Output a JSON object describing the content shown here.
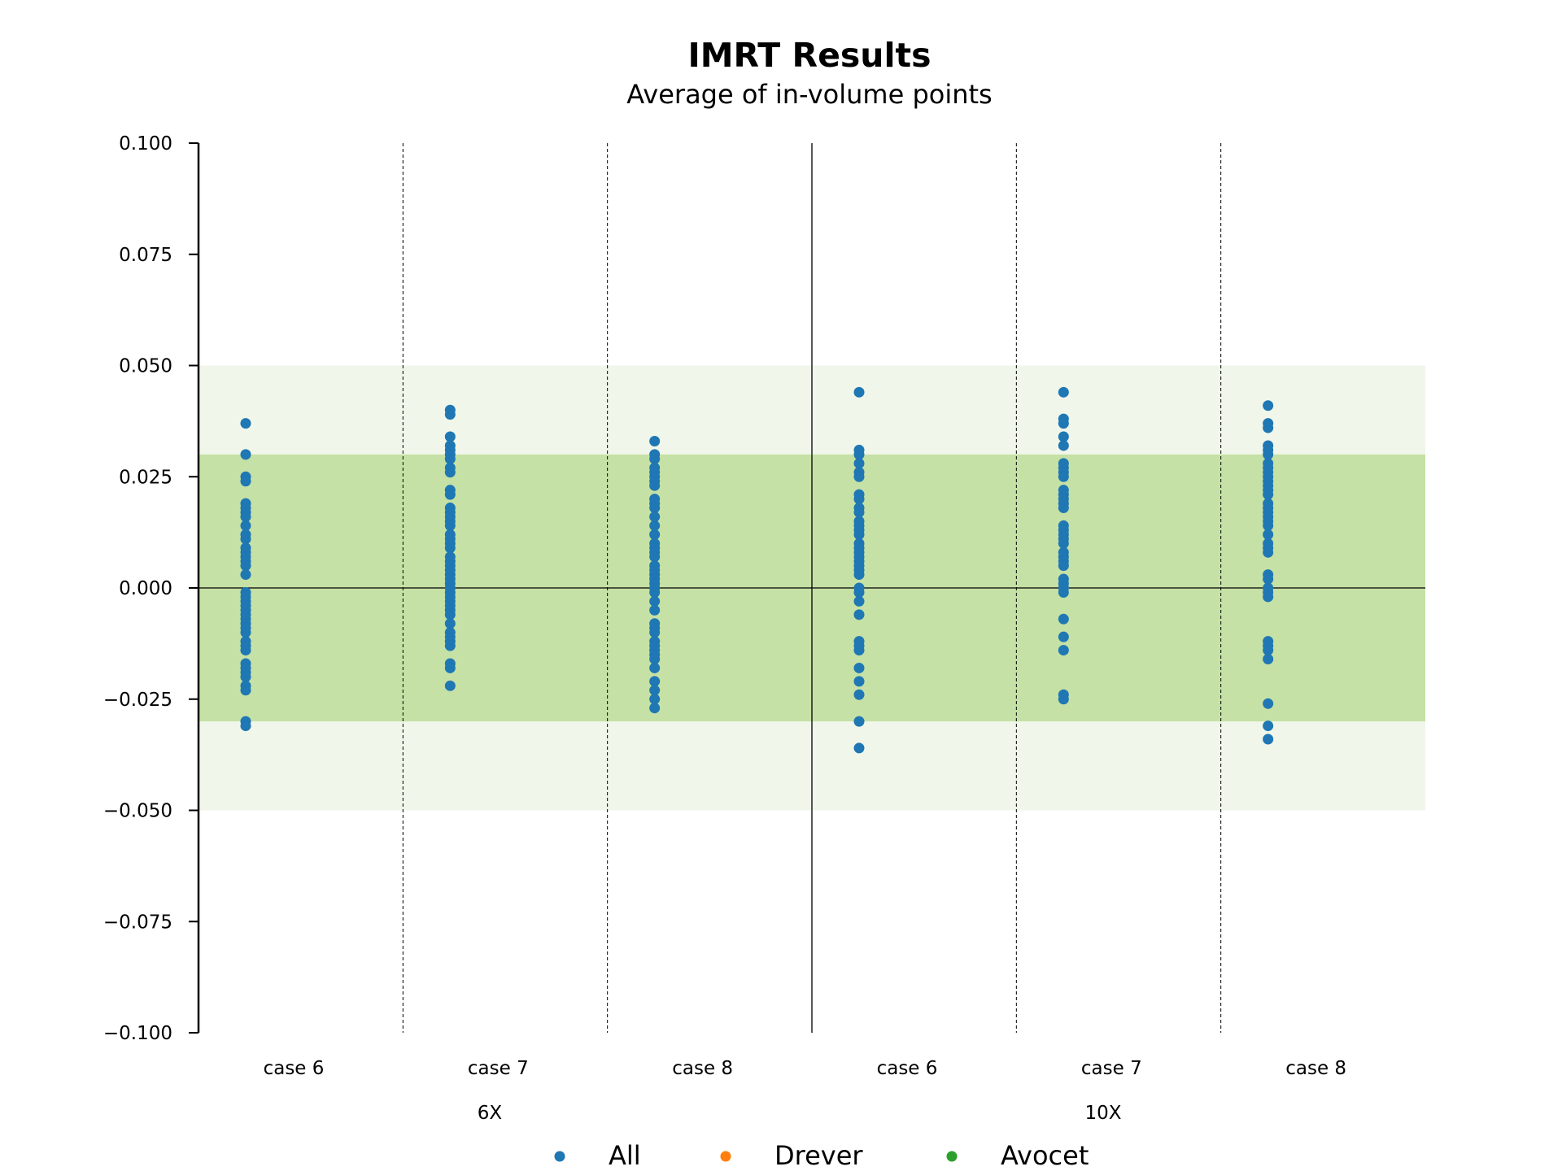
{
  "chart_data": {
    "type": "scatter",
    "title": "IMRT Results",
    "subtitle": "Average of in-volume points",
    "ylim": [
      -0.1,
      0.1
    ],
    "yticks": [
      0.1,
      0.075,
      0.05,
      0.025,
      0.0,
      -0.025,
      -0.05,
      -0.075,
      -0.1
    ],
    "ytick_labels": [
      "0.100",
      "0.075",
      "0.050",
      "0.025",
      "0.000",
      "−0.025",
      "−0.050",
      "−0.075",
      "−0.100"
    ],
    "bands": [
      {
        "from": -0.05,
        "to": 0.05,
        "color": "#f0f6e9"
      },
      {
        "from": -0.03,
        "to": 0.03,
        "color": "#c5e1a5"
      }
    ],
    "categories": [
      "case 6",
      "case 7",
      "case 8",
      "case 6",
      "case 7",
      "case 8"
    ],
    "groups": [
      {
        "label": "6X",
        "categories": [
          0,
          1,
          2
        ]
      },
      {
        "label": "10X",
        "categories": [
          3,
          4,
          5
        ]
      }
    ],
    "series": [
      {
        "name": "All",
        "color": "#1f77b4",
        "values": [
          [
            0.037,
            0.03,
            0.025,
            0.024,
            0.019,
            0.018,
            0.017,
            0.016,
            0.014,
            0.012,
            0.011,
            0.009,
            0.008,
            0.007,
            0.006,
            0.005,
            0.003,
            -0.001,
            -0.002,
            -0.003,
            -0.004,
            -0.005,
            -0.006,
            -0.007,
            -0.008,
            -0.009,
            -0.01,
            -0.012,
            -0.013,
            -0.014,
            -0.017,
            -0.018,
            -0.019,
            -0.02,
            -0.022,
            -0.023,
            -0.03,
            -0.031
          ],
          [
            0.04,
            0.039,
            0.034,
            0.032,
            0.031,
            0.03,
            0.029,
            0.027,
            0.026,
            0.022,
            0.021,
            0.018,
            0.017,
            0.016,
            0.015,
            0.014,
            0.012,
            0.011,
            0.01,
            0.009,
            0.007,
            0.006,
            0.005,
            0.004,
            0.003,
            0.002,
            0.001,
            0.0,
            -0.001,
            -0.002,
            -0.003,
            -0.004,
            -0.005,
            -0.006,
            -0.008,
            -0.01,
            -0.011,
            -0.012,
            -0.013,
            -0.017,
            -0.018,
            -0.022
          ],
          [
            0.033,
            0.03,
            0.029,
            0.027,
            0.026,
            0.025,
            0.024,
            0.023,
            0.02,
            0.019,
            0.018,
            0.016,
            0.014,
            0.012,
            0.01,
            0.009,
            0.008,
            0.007,
            0.005,
            0.004,
            0.003,
            0.002,
            0.001,
            0.0,
            -0.001,
            -0.003,
            -0.005,
            -0.008,
            -0.009,
            -0.01,
            -0.012,
            -0.013,
            -0.014,
            -0.015,
            -0.016,
            -0.018,
            -0.021,
            -0.023,
            -0.025,
            -0.027
          ],
          [
            0.044,
            0.031,
            0.03,
            0.028,
            0.026,
            0.025,
            0.021,
            0.02,
            0.018,
            0.017,
            0.015,
            0.014,
            0.013,
            0.012,
            0.01,
            0.009,
            0.008,
            0.007,
            0.006,
            0.005,
            0.004,
            0.003,
            0.0,
            -0.001,
            -0.003,
            -0.006,
            -0.012,
            -0.013,
            -0.014,
            -0.018,
            -0.021,
            -0.024,
            -0.03,
            -0.036
          ],
          [
            0.044,
            0.038,
            0.037,
            0.034,
            0.032,
            0.028,
            0.027,
            0.026,
            0.025,
            0.022,
            0.021,
            0.02,
            0.019,
            0.018,
            0.014,
            0.013,
            0.012,
            0.011,
            0.01,
            0.008,
            0.007,
            0.006,
            0.005,
            0.002,
            0.001,
            0.0,
            -0.001,
            -0.007,
            -0.011,
            -0.014,
            -0.024,
            -0.025
          ],
          [
            0.041,
            0.037,
            0.036,
            0.032,
            0.031,
            0.03,
            0.028,
            0.027,
            0.026,
            0.025,
            0.024,
            0.023,
            0.022,
            0.021,
            0.019,
            0.018,
            0.017,
            0.016,
            0.015,
            0.014,
            0.012,
            0.01,
            0.009,
            0.008,
            0.003,
            0.002,
            0.0,
            -0.001,
            -0.002,
            -0.012,
            -0.013,
            -0.014,
            -0.016,
            -0.026,
            -0.031,
            -0.034
          ]
        ]
      },
      {
        "name": "Drever",
        "color": "#ff7f0e",
        "values": [
          [],
          [],
          [],
          [],
          [],
          []
        ]
      },
      {
        "name": "Avocet",
        "color": "#2ca02c",
        "values": [
          [],
          [],
          [],
          [],
          [],
          []
        ]
      }
    ],
    "legend": "bottom-center",
    "grid": false
  }
}
